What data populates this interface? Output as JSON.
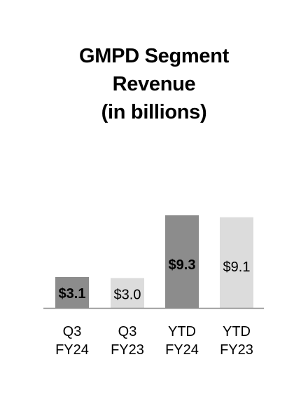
{
  "chart_data": {
    "type": "bar",
    "title_lines": [
      "GMPD Segment",
      "Revenue",
      "(in billions)"
    ],
    "categories": [
      [
        "Q3",
        "FY24"
      ],
      [
        "Q3",
        "FY23"
      ],
      [
        "YTD",
        "FY24"
      ],
      [
        "YTD",
        "FY23"
      ]
    ],
    "values": [
      3.1,
      3.0,
      9.3,
      9.1
    ],
    "data_labels": [
      "$3.1",
      "$3.0",
      "$9.3",
      "$9.1"
    ],
    "bar_colors": [
      "#8c8c8c",
      "#dcdcdc",
      "#8c8c8c",
      "#dcdcdc"
    ],
    "label_bold": [
      true,
      false,
      true,
      false
    ],
    "axis_color": "#8c8c8c",
    "grid": false,
    "legend": "none"
  }
}
